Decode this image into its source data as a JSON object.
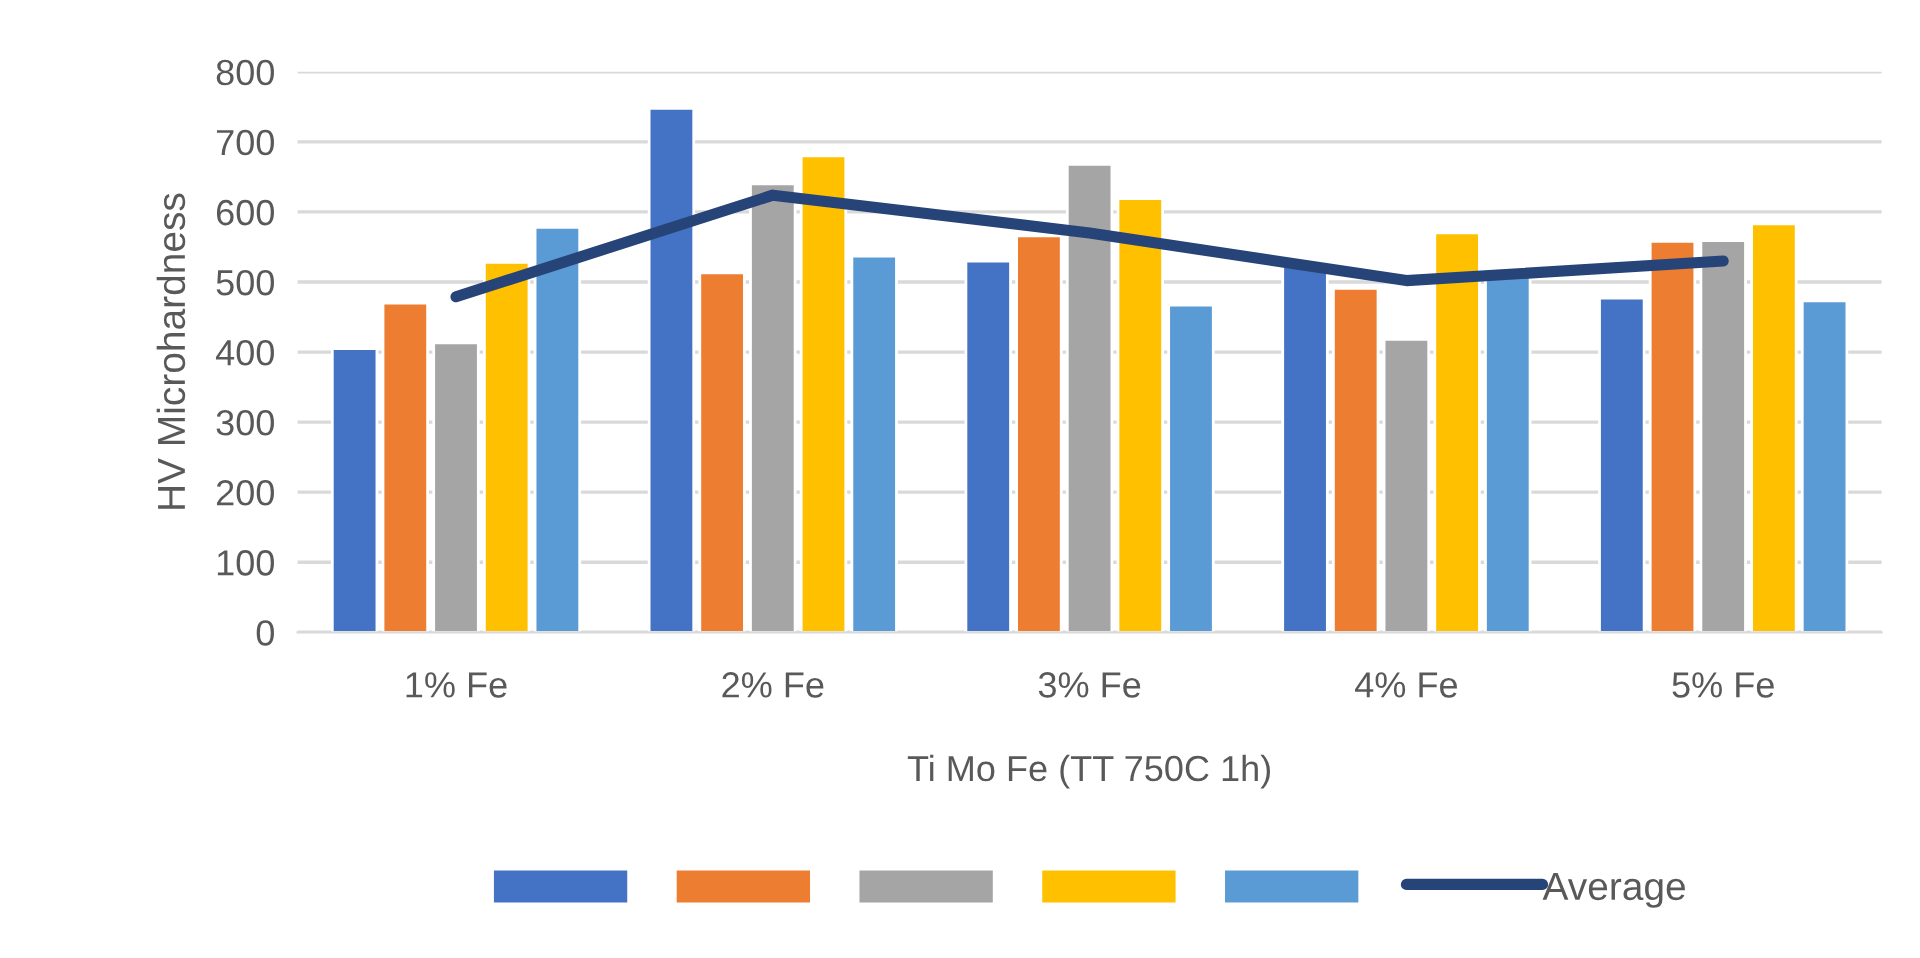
{
  "chart_data": {
    "type": "bar",
    "xlabel": "Ti Mo Fe (TT 750C 1h)",
    "ylabel": "HV Microhardness",
    "categories": [
      "1% Fe",
      "2% Fe",
      "3% Fe",
      "4% Fe",
      "5% Fe"
    ],
    "series": [
      {
        "color": "#4472c4",
        "values": [
          405,
          748,
          530,
          523,
          477
        ]
      },
      {
        "color": "#ed7d31",
        "values": [
          470,
          513,
          566,
          491,
          558
        ]
      },
      {
        "color": "#a5a5a5",
        "values": [
          413,
          640,
          668,
          418,
          559
        ]
      },
      {
        "color": "#ffc000",
        "values": [
          528,
          680,
          619,
          570,
          583
        ]
      },
      {
        "color": "#5b9bd5",
        "values": [
          578,
          537,
          467,
          509,
          473
        ]
      },
      {
        "type": "line",
        "name": "Average",
        "color": "#264478",
        "values": [
          479,
          624,
          570,
          502,
          530
        ]
      }
    ],
    "ylim": [
      0,
      800
    ],
    "yticks": [
      0,
      100,
      200,
      300,
      400,
      500,
      600,
      700,
      800
    ],
    "grid": "y",
    "legend": "bottom",
    "marker": "none",
    "line_style": "solid"
  }
}
